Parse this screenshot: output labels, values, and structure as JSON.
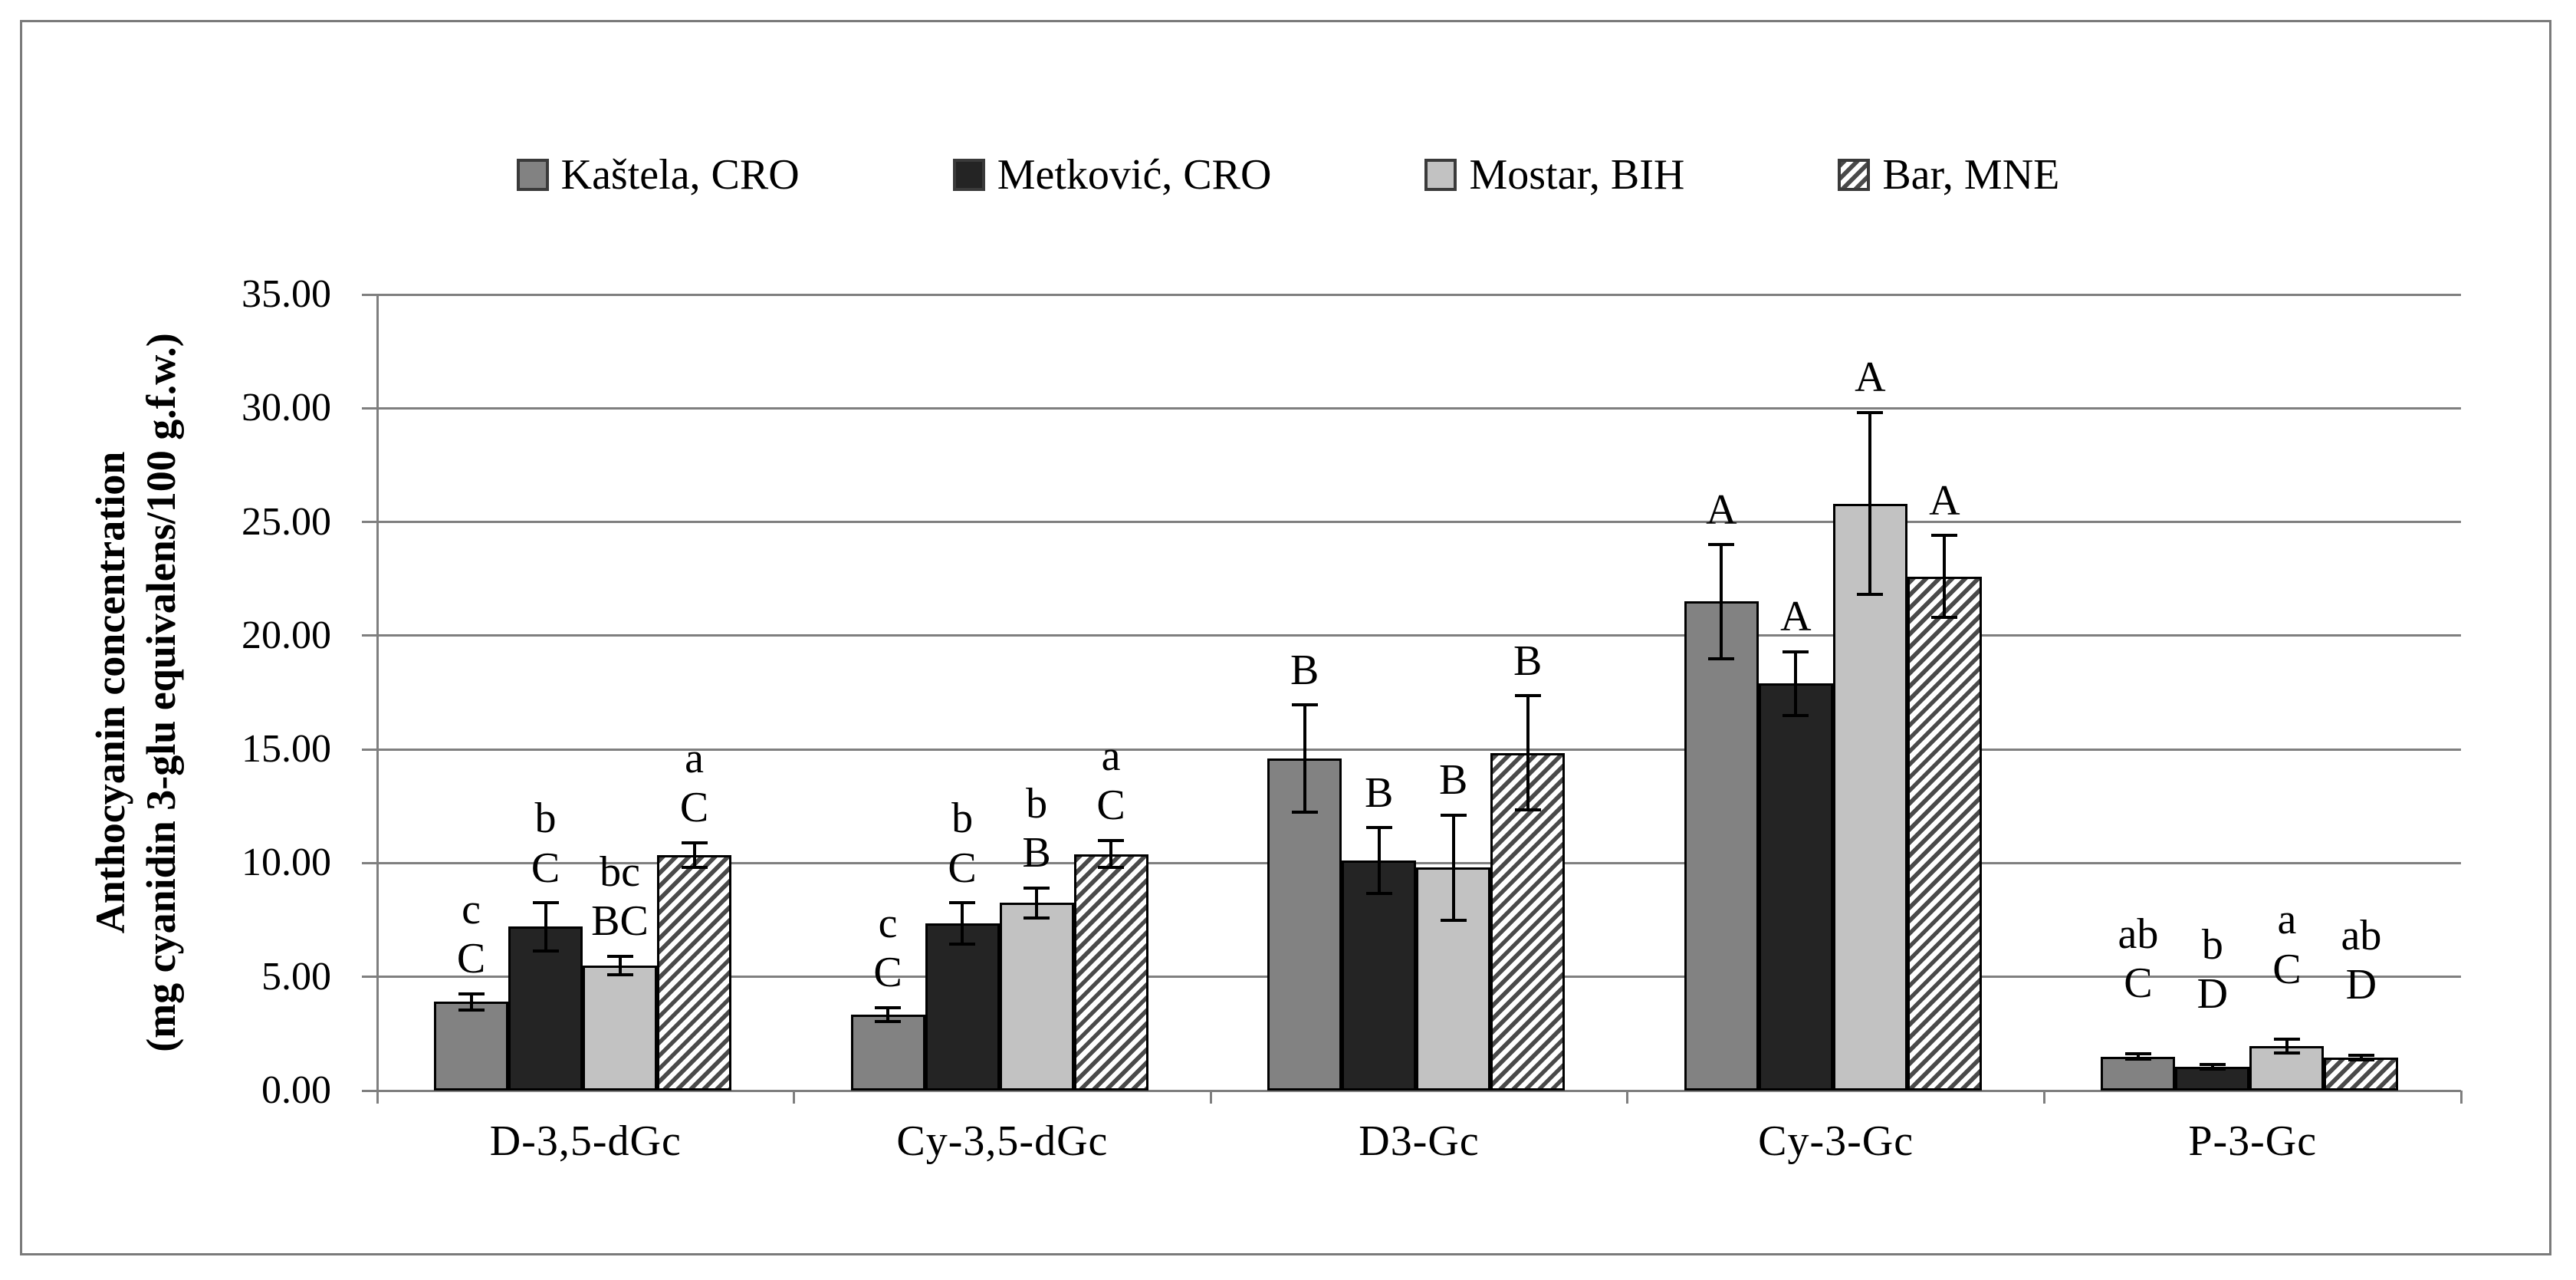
{
  "figure": {
    "background": "#ffffff",
    "frame_border_color": "#7a7a7a"
  },
  "legend": {
    "position": "top-center",
    "items": [
      {
        "label": "Kaštela, CRO",
        "swatch": "solid",
        "color": "#828282"
      },
      {
        "label": "Metković, CRO",
        "swatch": "solid",
        "color": "#242424"
      },
      {
        "label": "Mostar, BIH",
        "swatch": "solid",
        "color": "#c2c2c2"
      },
      {
        "label": "Bar, MNE",
        "swatch": "hatch",
        "color": "#4a4a4a"
      }
    ]
  },
  "chart_data": {
    "type": "bar",
    "title": "",
    "ylabel_line1": "Anthocyanin concentration",
    "ylabel_line2": "(mg cyanidin 3-glu equivalens/100 g.f.w.)",
    "xlabel": "",
    "ylim": [
      0,
      35
    ],
    "ytick_step": 5,
    "ytick_labels": [
      "0.00",
      "5.00",
      "10.00",
      "15.00",
      "20.00",
      "25.00",
      "30.00",
      "35.00"
    ],
    "grid": "horizontal",
    "legend_position": "top",
    "categories": [
      "D-3,5-dGc",
      "Cy-3,5-dGc",
      "D3-Gc",
      "Cy-3-Gc",
      "P-3-Gc"
    ],
    "series": [
      {
        "name": "Kaštela, CRO",
        "pattern": "solid",
        "fill": "#828282",
        "values": [
          3.9,
          3.35,
          14.6,
          21.5,
          1.5
        ],
        "errors": [
          0.35,
          0.3,
          2.35,
          2.5,
          0.12
        ],
        "sig_labels": [
          [
            "c",
            "C"
          ],
          [
            "c",
            "C"
          ],
          [
            "B"
          ],
          [
            "A"
          ],
          [
            "ab",
            "C"
          ]
        ]
      },
      {
        "name": "Metković, CRO",
        "pattern": "solid",
        "fill": "#242424",
        "values": [
          7.2,
          7.35,
          10.1,
          17.9,
          1.05
        ],
        "errors": [
          1.05,
          0.9,
          1.45,
          1.4,
          0.1
        ],
        "sig_labels": [
          [
            "b",
            "C"
          ],
          [
            "b",
            "C"
          ],
          [
            "B"
          ],
          [
            "A"
          ],
          [
            "b",
            "D"
          ]
        ]
      },
      {
        "name": "Mostar, BIH",
        "pattern": "solid",
        "fill": "#c2c2c2",
        "values": [
          5.5,
          8.25,
          9.8,
          25.8,
          1.95
        ],
        "errors": [
          0.4,
          0.65,
          2.3,
          4.0,
          0.3
        ],
        "sig_labels": [
          [
            "bc",
            "BC"
          ],
          [
            "b",
            "B"
          ],
          [
            "B"
          ],
          [
            "A"
          ],
          [
            "a",
            "C"
          ]
        ]
      },
      {
        "name": "Bar, MNE",
        "pattern": "diagonal-up-hatch",
        "fill": "#ffffff",
        "stripe_color": "#4a4a4a",
        "values": [
          10.35,
          10.4,
          14.85,
          22.6,
          1.45
        ],
        "errors": [
          0.55,
          0.6,
          2.5,
          1.8,
          0.1
        ],
        "sig_labels": [
          [
            "a",
            "C"
          ],
          [
            "a",
            "C"
          ],
          [
            "B"
          ],
          [
            "A"
          ],
          [
            "ab",
            "D"
          ]
        ]
      }
    ],
    "annotation_offset_units": [
      0.45,
      0.45,
      0.45,
      0.45,
      2.0
    ],
    "colors": {
      "grid": "#7f7f7f",
      "axis": "#7f7f7f",
      "error_bar": "#000000",
      "bar_border": "#000000",
      "text": "#000000"
    }
  }
}
